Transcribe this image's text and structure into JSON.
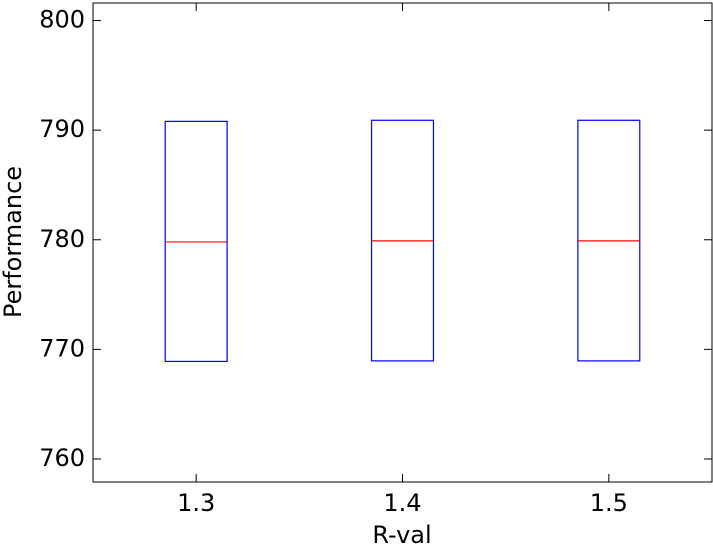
{
  "chart_data": {
    "type": "box",
    "x_label": "R-val",
    "y_label": "Performance",
    "categories": [
      "1.3",
      "1.4",
      "1.5"
    ],
    "q1": [
      768.9,
      768.95,
      768.95
    ],
    "median": [
      779.8,
      779.9,
      779.9
    ],
    "q3": [
      790.8,
      790.9,
      790.9
    ],
    "box_color": "#0000ff",
    "median_color": "#ff0000",
    "ylim": [
      757.9,
      801.6
    ],
    "yticks": [
      760,
      770,
      780,
      790,
      800
    ]
  }
}
